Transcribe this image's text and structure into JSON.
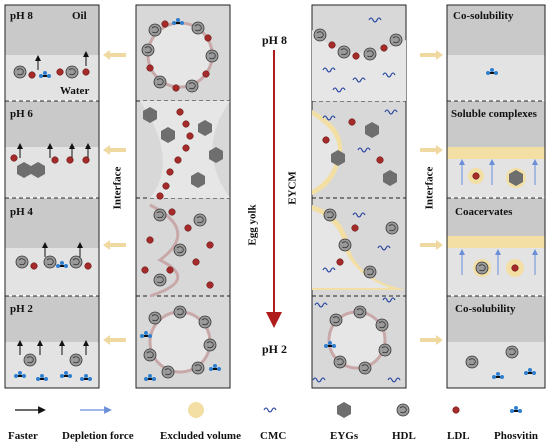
{
  "left_panel": {
    "ph8": "pH 8",
    "oil": "Oil",
    "water": "Water",
    "ph6": "pH 6",
    "ph4": "pH 4",
    "ph2": "pH 2"
  },
  "left_interface": "Interface",
  "center": {
    "top_label": "pH 8",
    "bottom_label": "pH 2",
    "egg_yolk": "Egg yolk",
    "eycm": "EYCM"
  },
  "right_interface": "Interface",
  "right_panel": {
    "co_solubility_top": "Co-solubility",
    "soluble_complexes": "Soluble complexes",
    "coacervates": "Coacervates",
    "co_solubility_bottom": "Co-solubility"
  },
  "legend": {
    "faster": "Faster",
    "depletion_force": "Depletion force",
    "excluded_volume": "Excluded volume",
    "cmc": "CMC",
    "eygs": "EYGs",
    "hdl": "HDL",
    "ldl": "LDL",
    "phosvitin": "Phosvitin"
  },
  "colors": {
    "panel_gray": "#c9c9c9",
    "panel_light": "#e3e3e3",
    "ldl_red": "#a52a2a",
    "egy_gray": "#6e6e6e",
    "cmc_blue": "#1f3f9c",
    "phosvitin_blue": "#2f7fd0",
    "excluded_yellow": "#f3dfa3",
    "arrow_red": "#b01b1b",
    "interface_arrow": "#f0d9a0"
  }
}
